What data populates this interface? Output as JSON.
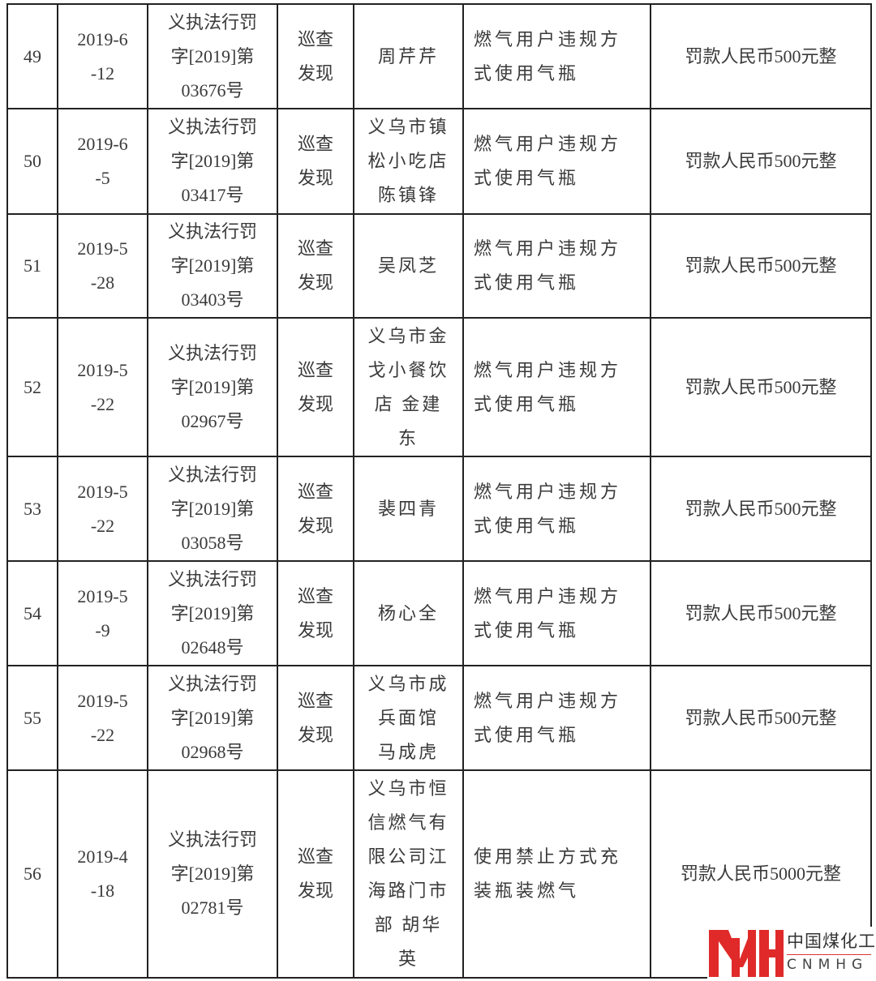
{
  "rows": [
    {
      "no": "49",
      "date": "2019-6\n-12",
      "doc": "义执法行罚\n字[2019]第\n03676号",
      "source": "巡查\n发现",
      "party": "周芹芹",
      "violation": "燃气用户违规方\n式使用气瓶",
      "penalty": "罚款人民币500元整"
    },
    {
      "no": "50",
      "date": "2019-6\n-5",
      "doc": "义执法行罚\n字[2019]第\n03417号",
      "source": "巡查\n发现",
      "party": "义乌市镇\n松小吃店\n陈镇锋",
      "violation": "燃气用户违规方\n式使用气瓶",
      "penalty": "罚款人民币500元整"
    },
    {
      "no": "51",
      "date": "2019-5\n-28",
      "doc": "义执法行罚\n字[2019]第\n03403号",
      "source": "巡查\n发现",
      "party": "吴凤芝",
      "violation": "燃气用户违规方\n式使用气瓶",
      "penalty": "罚款人民币500元整"
    },
    {
      "no": "52",
      "date": "2019-5\n-22",
      "doc": "义执法行罚\n字[2019]第\n02967号",
      "source": "巡查\n发现",
      "party": "义乌市金\n戈小餐饮\n店 金建\n东",
      "violation": "燃气用户违规方\n式使用气瓶",
      "penalty": "罚款人民币500元整"
    },
    {
      "no": "53",
      "date": "2019-5\n-22",
      "doc": "义执法行罚\n字[2019]第\n03058号",
      "source": "巡查\n发现",
      "party": "裴四青",
      "violation": "燃气用户违规方\n式使用气瓶",
      "penalty": "罚款人民币500元整"
    },
    {
      "no": "54",
      "date": "2019-5\n-9",
      "doc": "义执法行罚\n字[2019]第\n02648号",
      "source": "巡查\n发现",
      "party": "杨心全",
      "violation": "燃气用户违规方\n式使用气瓶",
      "penalty": "罚款人民币500元整"
    },
    {
      "no": "55",
      "date": "2019-5\n-22",
      "doc": "义执法行罚\n字[2019]第\n02968号",
      "source": "巡查\n发现",
      "party": "义乌市成\n兵面馆\n马成虎",
      "violation": "燃气用户违规方\n式使用气瓶",
      "penalty": "罚款人民币500元整"
    },
    {
      "no": "56",
      "date": "2019-4\n-18",
      "doc": "义执法行罚\n字[2019]第\n02781号",
      "source": "巡查\n发现",
      "party": "义乌市恒\n信燃气有\n限公司江\n海路门市\n部 胡华\n英",
      "violation": "使用禁止方式充\n装瓶装燃气",
      "penalty": "罚款人民币5000元整"
    }
  ],
  "watermark": {
    "cn": "中国煤化工",
    "en": "CNMHG",
    "color": "#e02a2a"
  }
}
